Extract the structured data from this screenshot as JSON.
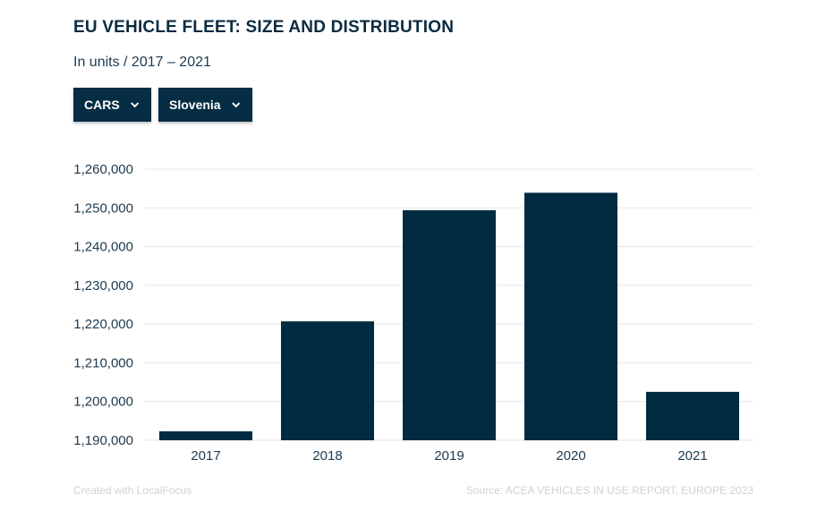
{
  "header": {
    "title": "EU VEHICLE FLEET: SIZE AND DISTRIBUTION",
    "subtitle": "In units / 2017 – 2021"
  },
  "filters": {
    "vehicle_type": "CARS",
    "country": "Slovenia"
  },
  "footer": {
    "credit": "Created with LocalFocus",
    "source": "Source:  ACEA VEHICLES IN USE REPORT, EUROPE 2023"
  },
  "colors": {
    "bar": "#002b40",
    "grid": "#e2e5e8",
    "button": "#062d43"
  },
  "chart_data": {
    "type": "bar",
    "categories": [
      "2017",
      "2018",
      "2019",
      "2020",
      "2021"
    ],
    "values": [
      1192300,
      1220700,
      1249400,
      1253900,
      1202500
    ],
    "ylim": [
      1190000,
      1260000
    ],
    "yticks": [
      1190000,
      1200000,
      1210000,
      1220000,
      1230000,
      1240000,
      1250000,
      1260000
    ],
    "ytick_labels": [
      "1,190,000",
      "1,200,000",
      "1,210,000",
      "1,220,000",
      "1,230,000",
      "1,240,000",
      "1,250,000",
      "1,260,000"
    ],
    "grid": true,
    "legend": "none",
    "xlabel": "",
    "ylabel": ""
  }
}
